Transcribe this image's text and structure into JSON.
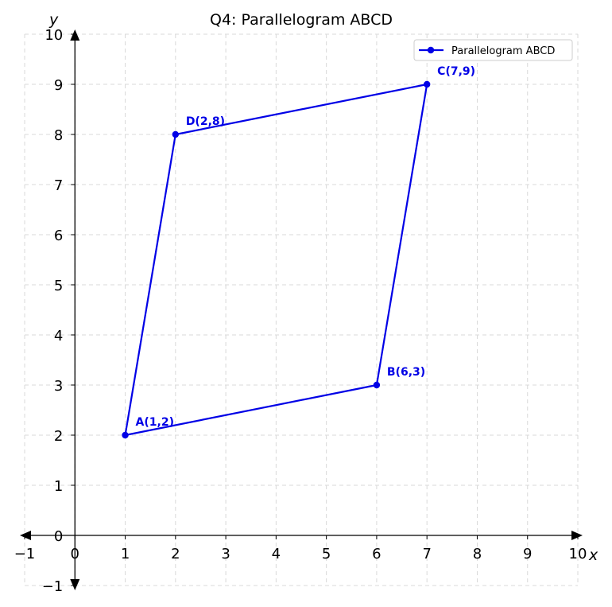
{
  "chart_data": {
    "type": "line",
    "title": "Q4: Parallelogram ABCD",
    "xlabel": "x",
    "ylabel": "y",
    "xlim": [
      -1,
      10
    ],
    "ylim": [
      -1,
      10
    ],
    "xticks": [
      "−1",
      "0",
      "1",
      "2",
      "3",
      "4",
      "5",
      "6",
      "7",
      "8",
      "9",
      "10"
    ],
    "yticks": [
      "−1",
      "0",
      "1",
      "2",
      "3",
      "4",
      "5",
      "6",
      "7",
      "8",
      "9",
      "10"
    ],
    "grid": true,
    "legend_position": "top-right",
    "series": [
      {
        "name": "Parallelogram ABCD",
        "color": "#0000e6",
        "closed": true,
        "points": [
          {
            "label": "A(1,2)",
            "x": 1,
            "y": 2
          },
          {
            "label": "B(6,3)",
            "x": 6,
            "y": 3
          },
          {
            "label": "C(7,9)",
            "x": 7,
            "y": 9
          },
          {
            "label": "D(2,8)",
            "x": 2,
            "y": 8
          }
        ]
      }
    ]
  }
}
